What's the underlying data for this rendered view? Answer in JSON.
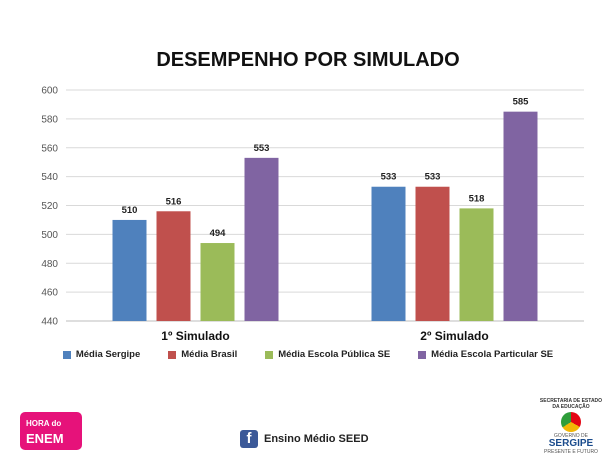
{
  "chart_data": {
    "type": "bar",
    "title": "DESEMPENHO POR SIMULADO",
    "categories": [
      "1º Simulado",
      "2º Simulado"
    ],
    "ylim": [
      440,
      600
    ],
    "yticks": [
      440,
      460,
      480,
      500,
      520,
      540,
      560,
      580,
      600
    ],
    "grid": true,
    "legend_position": "bottom",
    "series": [
      {
        "name": "Média Sergipe",
        "values": [
          510,
          533
        ],
        "color": "#4f81bd"
      },
      {
        "name": "Média Brasil",
        "values": [
          516,
          533
        ],
        "color": "#c0504d"
      },
      {
        "name": "Média Escola Pública SE",
        "values": [
          494,
          518
        ],
        "color": "#9bbb59"
      },
      {
        "name": "Média Escola Particular SE",
        "values": [
          553,
          585
        ],
        "color": "#8064a2"
      }
    ]
  },
  "footer": {
    "logo_left_line1": "HORA do",
    "logo_left_line2": "ENEM",
    "facebook_text": "Ensino Médio SEED",
    "fb_glyph": "f",
    "seal_top": "SECRETARIA DE ESTADO DA EDUCAÇÃO",
    "seal_gov": "GOVERNO DE",
    "seal_name": "SERGIPE",
    "seal_sub": "PRESENTE E FUTURO"
  }
}
